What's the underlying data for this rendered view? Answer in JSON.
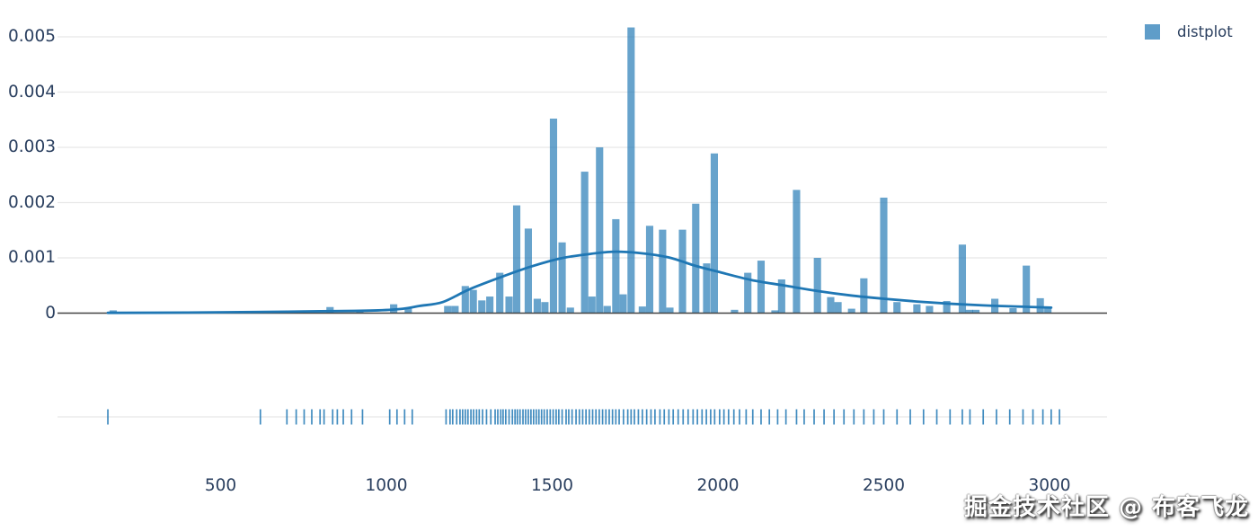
{
  "figure": {
    "kind": "plotly distplot (histogram + kde curve + rug subplot)"
  },
  "legend": {
    "label": "distplot"
  },
  "watermark": {
    "text": "掘金技术社区 @ 布客飞龙"
  },
  "colors": {
    "bar_fill": "rgba(31,119,180,0.68)",
    "kde_line": "#1f77b4",
    "rug_mark": "rgba(31,119,180,0.85)",
    "gridline": "#e8e8e8",
    "rug_gridline": "#e8e8e8",
    "axis_line": "#444444",
    "tick_label": "#2a3f5f",
    "legend_swatch": "#5f9dc9"
  },
  "chart_data": {
    "type": "bar",
    "subtype": "distplot: probability-density histogram with kde line overlay and rug plot",
    "title": "",
    "xlabel": "",
    "ylabel": "",
    "x_ticks": [
      500,
      1000,
      1500,
      2000,
      2500,
      3000
    ],
    "y_ticks": [
      0,
      0.001,
      0.002,
      0.003,
      0.004,
      0.005
    ],
    "xlim": [
      10,
      3170
    ],
    "ylim": [
      0,
      0.0054
    ],
    "grid": "horizontal gridlines only",
    "legend_position": "top-right",
    "series": [
      {
        "name": "distplot histogram",
        "type": "bar",
        "bin_width": 22,
        "points": [
          [
            176,
            5e-05
          ],
          [
            830,
            0.00011
          ],
          [
            920,
            5e-05
          ],
          [
            1022,
            0.00016
          ],
          [
            1066,
            8e-05
          ],
          [
            1185,
            0.00013
          ],
          [
            1207,
            0.00013
          ],
          [
            1238,
            0.00049
          ],
          [
            1262,
            0.00042
          ],
          [
            1288,
            0.00023
          ],
          [
            1312,
            0.0003
          ],
          [
            1342,
            0.00073
          ],
          [
            1370,
            0.0003
          ],
          [
            1393,
            0.00195
          ],
          [
            1428,
            0.00153
          ],
          [
            1455,
            0.00026
          ],
          [
            1478,
            0.0002
          ],
          [
            1504,
            0.00352
          ],
          [
            1530,
            0.00128
          ],
          [
            1555,
            0.0001
          ],
          [
            1598,
            0.00256
          ],
          [
            1620,
            0.0003
          ],
          [
            1643,
            0.003
          ],
          [
            1666,
            0.00013
          ],
          [
            1692,
            0.0017
          ],
          [
            1714,
            0.00034
          ],
          [
            1738,
            0.00517
          ],
          [
            1772,
            0.00012
          ],
          [
            1794,
            0.00158
          ],
          [
            1833,
            0.00151
          ],
          [
            1855,
            0.0001
          ],
          [
            1893,
            0.00151
          ],
          [
            1933,
            0.00198
          ],
          [
            1966,
            0.0009
          ],
          [
            1989,
            0.00289
          ],
          [
            2050,
            6e-05
          ],
          [
            2090,
            0.00073
          ],
          [
            2130,
            0.00095
          ],
          [
            2172,
            5e-05
          ],
          [
            2192,
            0.00061
          ],
          [
            2237,
            0.00223
          ],
          [
            2300,
            0.001
          ],
          [
            2340,
            0.00029
          ],
          [
            2362,
            0.0002
          ],
          [
            2403,
            8e-05
          ],
          [
            2440,
            0.00063
          ],
          [
            2500,
            0.00209
          ],
          [
            2540,
            0.0002
          ],
          [
            2600,
            0.00016
          ],
          [
            2638,
            0.00013
          ],
          [
            2690,
            0.00022
          ],
          [
            2737,
            0.00124
          ],
          [
            2758,
            6e-05
          ],
          [
            2778,
            6e-05
          ],
          [
            2835,
            0.00026
          ],
          [
            2890,
            9e-05
          ],
          [
            2930,
            0.00086
          ],
          [
            2972,
            0.00027
          ],
          [
            2995,
            0.00011
          ]
        ]
      },
      {
        "name": "distplot kde curve",
        "type": "line",
        "points": [
          [
            160,
            5e-06
          ],
          [
            400,
            1e-05
          ],
          [
            600,
            2e-05
          ],
          [
            750,
            3e-05
          ],
          [
            900,
            4e-05
          ],
          [
            975,
            5e-05
          ],
          [
            1050,
            8e-05
          ],
          [
            1100,
            0.00013
          ],
          [
            1170,
            0.0002
          ],
          [
            1250,
            0.00043
          ],
          [
            1345,
            0.00065
          ],
          [
            1435,
            0.00084
          ],
          [
            1525,
            0.00099
          ],
          [
            1600,
            0.00106
          ],
          [
            1680,
            0.00111
          ],
          [
            1760,
            0.00109
          ],
          [
            1850,
            0.00101
          ],
          [
            1930,
            0.00086
          ],
          [
            2000,
            0.00075
          ],
          [
            2100,
            0.0006
          ],
          [
            2200,
            0.0005
          ],
          [
            2300,
            0.0004
          ],
          [
            2400,
            0.00032
          ],
          [
            2500,
            0.00026
          ],
          [
            2600,
            0.00021
          ],
          [
            2700,
            0.00017
          ],
          [
            2800,
            0.00014
          ],
          [
            2900,
            0.00012
          ],
          [
            3005,
            0.0001
          ]
        ]
      },
      {
        "name": "distplot rug",
        "type": "rug",
        "x": [
          160,
          620,
          700,
          728,
          752,
          775,
          800,
          812,
          838,
          852,
          870,
          895,
          928,
          1010,
          1032,
          1055,
          1078,
          1180,
          1192,
          1200,
          1212,
          1222,
          1230,
          1238,
          1246,
          1255,
          1263,
          1272,
          1280,
          1290,
          1302,
          1315,
          1328,
          1336,
          1345,
          1352,
          1360,
          1370,
          1380,
          1388,
          1395,
          1403,
          1412,
          1420,
          1428,
          1436,
          1444,
          1452,
          1460,
          1468,
          1476,
          1485,
          1494,
          1503,
          1512,
          1520,
          1530,
          1542,
          1550,
          1560,
          1572,
          1582,
          1592,
          1602,
          1612,
          1622,
          1632,
          1642,
          1652,
          1662,
          1672,
          1682,
          1692,
          1702,
          1715,
          1728,
          1738,
          1748,
          1760,
          1772,
          1785,
          1798,
          1810,
          1825,
          1838,
          1852,
          1865,
          1880,
          1895,
          1910,
          1925,
          1938,
          1952,
          1965,
          1978,
          1990,
          2005,
          2018,
          2032,
          2048,
          2065,
          2085,
          2105,
          2130,
          2155,
          2180,
          2205,
          2237,
          2260,
          2290,
          2320,
          2350,
          2380,
          2410,
          2440,
          2470,
          2500,
          2540,
          2580,
          2620,
          2660,
          2700,
          2737,
          2760,
          2800,
          2840,
          2880,
          2920,
          2950,
          2980,
          3005,
          3030
        ]
      }
    ]
  }
}
